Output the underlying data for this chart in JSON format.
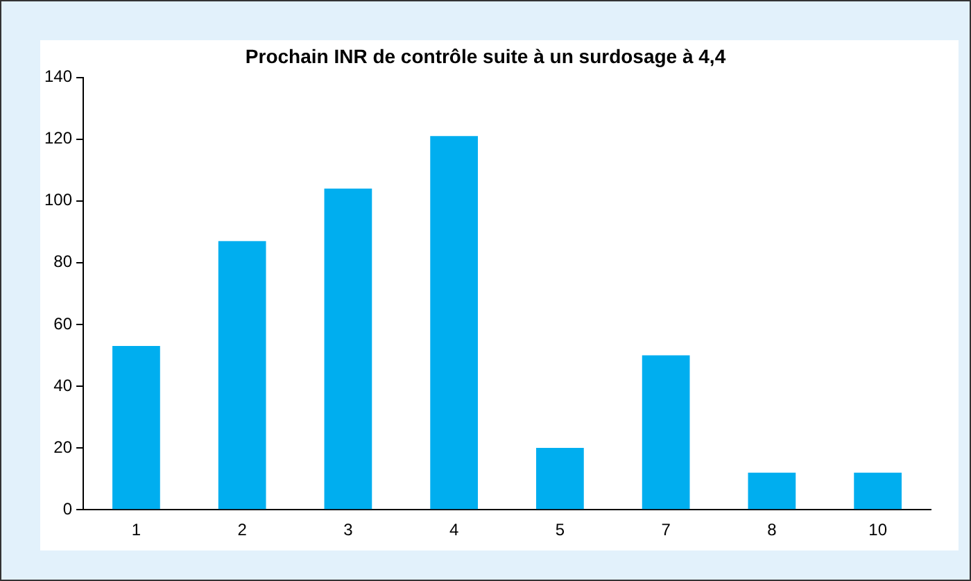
{
  "chart_data": {
    "type": "bar",
    "title": "Prochain INR de contrôle suite à un surdosage à 4,4",
    "categories": [
      "1",
      "2",
      "3",
      "4",
      "5",
      "7",
      "8",
      "10"
    ],
    "values": [
      53,
      87,
      104,
      121,
      20,
      50,
      12,
      12
    ],
    "color": "#00aeef",
    "ylim": [
      0,
      140
    ],
    "yticks": [
      0,
      20,
      40,
      60,
      80,
      100,
      120,
      140
    ],
    "grid": false,
    "legend": false
  }
}
